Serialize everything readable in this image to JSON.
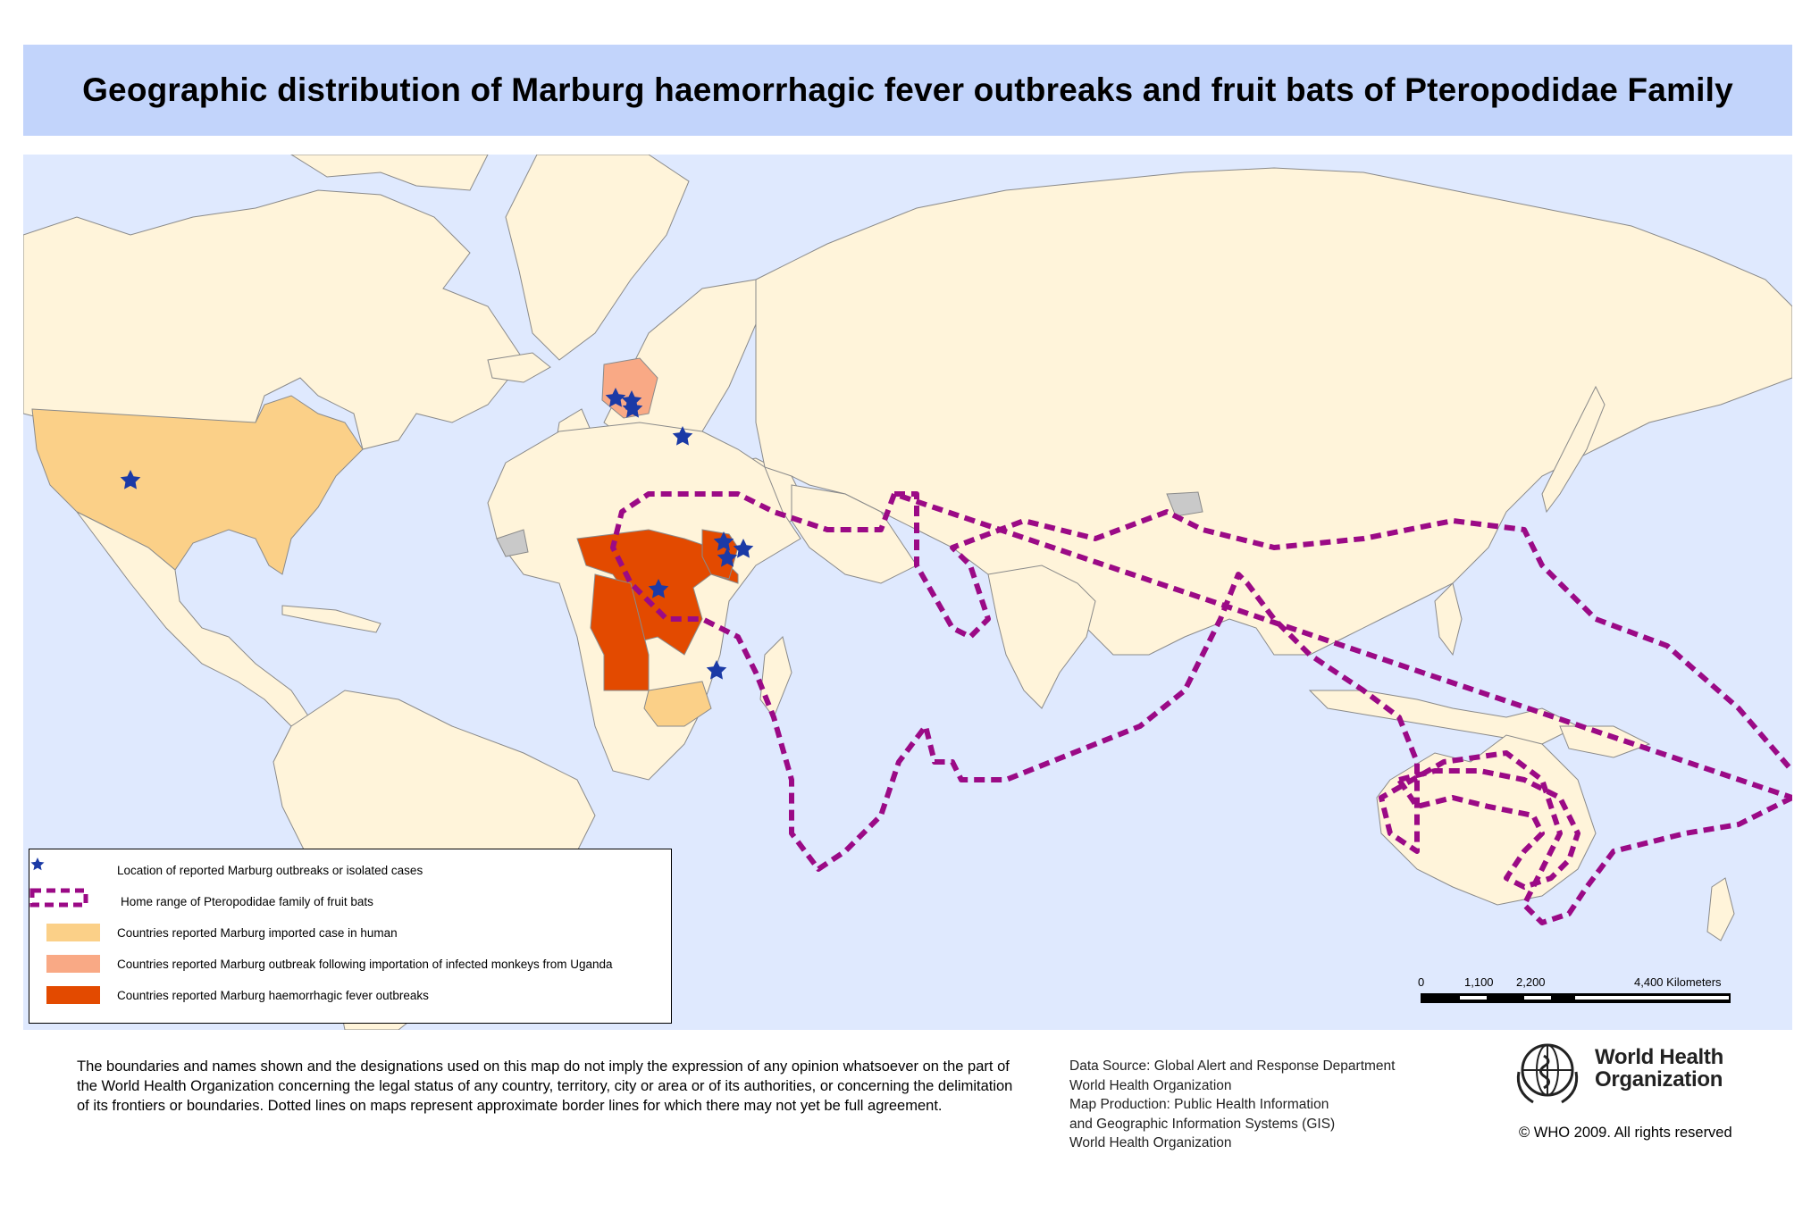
{
  "title": "Geographic distribution of Marburg haemorrhagic fever outbreaks and fruit bats of Pteropodidae Family",
  "colors": {
    "ocean": "#dfe9fe",
    "land": "#fff4da",
    "border": "#8a8a8a",
    "imported_case": "#fbd088",
    "monkey_import": "#f9a985",
    "outbreak": "#e34a00",
    "disputed": "#c9c9c9",
    "bat_range": "#9b0a86",
    "star": "#1b3aa6",
    "title_bg": "#c2d4fb"
  },
  "legend": {
    "items": [
      {
        "symbol": "star-icon",
        "label": "Location of reported Marburg outbreaks or isolated cases"
      },
      {
        "symbol": "dashed-outline",
        "label": "Home range of Pteropodidae family of  fruit bats"
      },
      {
        "symbol": "imported-case-swatch",
        "label": "Countries reported Marburg imported case in human"
      },
      {
        "symbol": "monkey-import-swatch",
        "label": "Countries reported Marburg outbreak following importation of infected monkeys from Uganda"
      },
      {
        "symbol": "outbreak-swatch",
        "label": "Countries reported Marburg haemorrhagic fever outbreaks"
      }
    ]
  },
  "scale_bar": {
    "ticks": [
      "0",
      "1,100",
      "2,200",
      "4,400 Kilometers"
    ]
  },
  "disclaimer": "The boundaries and names shown and the designations used on this map do not imply the expression of any opinion whatsoever on the part of the World Health Organization concerning the legal status of any country, territory, city or area or of its authorities, or concerning the delimitation of its frontiers or boundaries.  Dotted lines on maps represent approximate border lines for which there may not yet be full agreement.",
  "source_lines": [
    "Data Source: Global Alert and Response Department",
    "World Health Organization",
    "Map Production: Public Health Information",
    "and Geographic Information Systems (GIS)",
    "World Health Organization"
  ],
  "who_name": [
    "World Health",
    "Organization"
  ],
  "copyright": "© WHO 2009. All rights reserved"
}
